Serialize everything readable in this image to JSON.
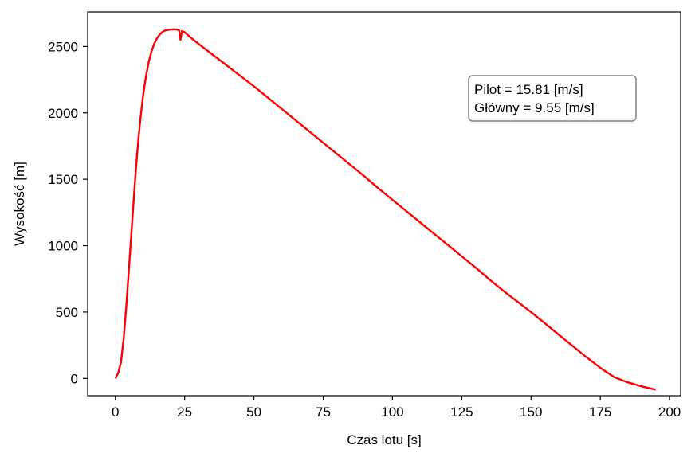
{
  "chart_data": {
    "type": "line",
    "xlabel": "Czas lotu [s]",
    "ylabel": "Wysokość [m]",
    "xlim": [
      -10,
      204
    ],
    "ylim": [
      -130,
      2760
    ],
    "xticks": [
      0,
      25,
      50,
      75,
      100,
      125,
      150,
      175,
      200
    ],
    "yticks": [
      0,
      500,
      1000,
      1500,
      2000,
      2500
    ],
    "grid": false,
    "legend": "none",
    "series": [
      {
        "color": "#ff0000",
        "x": [
          0,
          1,
          2,
          3,
          4,
          5,
          6,
          7,
          8,
          9,
          10,
          11,
          12,
          13,
          14,
          15,
          16,
          17,
          18,
          19,
          20,
          21,
          22,
          23,
          23.5,
          24,
          25,
          27,
          30,
          35,
          40,
          45,
          50,
          55,
          60,
          65,
          70,
          75,
          80,
          85,
          90,
          95,
          100,
          105,
          110,
          115,
          120,
          125,
          130,
          135,
          140,
          145,
          150,
          155,
          160,
          165,
          170,
          175,
          180,
          185,
          190,
          193,
          195
        ],
        "y": [
          0,
          40,
          120,
          300,
          560,
          860,
          1160,
          1460,
          1730,
          1950,
          2130,
          2270,
          2380,
          2460,
          2520,
          2560,
          2590,
          2610,
          2620,
          2625,
          2628,
          2629,
          2628,
          2622,
          2550,
          2615,
          2608,
          2570,
          2520,
          2440,
          2360,
          2280,
          2200,
          2115,
          2030,
          1945,
          1860,
          1775,
          1690,
          1605,
          1520,
          1430,
          1345,
          1260,
          1175,
          1090,
          1005,
          920,
          835,
          745,
          660,
          580,
          500,
          415,
          330,
          245,
          160,
          80,
          10,
          -30,
          -60,
          -75,
          -85
        ]
      }
    ],
    "annotation": {
      "lines": [
        "Pilot = 15.81 [m/s]",
        "Główny = 9.55 [m/s]"
      ],
      "position": "upper-right",
      "box_edge_color": "#808080",
      "box_face_color": "#ffffff"
    }
  }
}
